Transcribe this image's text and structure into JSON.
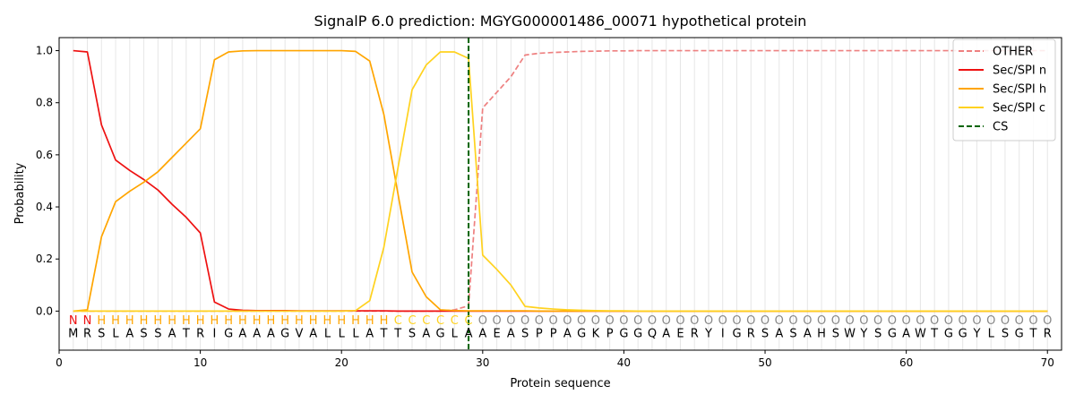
{
  "chart_data": {
    "type": "line",
    "title": "SignalP 6.0 prediction: MGYG000001486_00071 hypothetical protein",
    "xlabel": "Protein sequence",
    "ylabel": "Probability",
    "xlim": [
      0,
      71
    ],
    "ylim": [
      -0.15,
      1.05
    ],
    "x_ticks": [
      0,
      10,
      20,
      30,
      40,
      50,
      60,
      70
    ],
    "y_ticks": [
      0.0,
      0.2,
      0.4,
      0.6,
      0.8,
      1.0
    ],
    "x_tick_labels": [
      "0",
      "10",
      "20",
      "30",
      "40",
      "50",
      "60",
      "70"
    ],
    "y_tick_labels": [
      "0.0",
      "0.2",
      "0.4",
      "0.6",
      "0.8",
      "1.0"
    ],
    "grid": "vertical lines at each residue",
    "legend_position": "top-right",
    "sequence": [
      "M",
      "R",
      "S",
      "L",
      "A",
      "S",
      "S",
      "A",
      "T",
      "R",
      "I",
      "G",
      "A",
      "A",
      "A",
      "G",
      "V",
      "A",
      "L",
      "L",
      "L",
      "A",
      "T",
      "T",
      "S",
      "A",
      "G",
      "L",
      "A",
      "A",
      "E",
      "A",
      "S",
      "P",
      "P",
      "A",
      "G",
      "K",
      "P",
      "G",
      "G",
      "Q",
      "A",
      "E",
      "R",
      "Y",
      "I",
      "G",
      "R",
      "S",
      "A",
      "S",
      "A",
      "H",
      "S",
      "W",
      "Y",
      "S",
      "G",
      "A",
      "W",
      "T",
      "G",
      "G",
      "Y",
      "L",
      "S",
      "G",
      "T",
      "R"
    ],
    "region_labels": [
      "N",
      "N",
      "H",
      "H",
      "H",
      "H",
      "H",
      "H",
      "H",
      "H",
      "H",
      "H",
      "H",
      "H",
      "H",
      "H",
      "H",
      "H",
      "H",
      "H",
      "H",
      "H",
      "H",
      "C",
      "C",
      "C",
      "C",
      "C",
      "C",
      "O",
      "O",
      "O",
      "O",
      "O",
      "O",
      "O",
      "O",
      "O",
      "O",
      "O",
      "O",
      "O",
      "O",
      "O",
      "O",
      "O",
      "O",
      "O",
      "O",
      "O",
      "O",
      "O",
      "O",
      "O",
      "O",
      "O",
      "O",
      "O",
      "O",
      "O",
      "O",
      "O",
      "O",
      "O",
      "O",
      "O",
      "O",
      "O",
      "O",
      "O"
    ],
    "region_colors": {
      "N": "#ee1111",
      "H": "#ffa500",
      "C": "#ffd21f",
      "O": "#888888"
    },
    "series": [
      {
        "name": "OTHER",
        "color": "#ee8080",
        "style": "dashed",
        "values": [
          0,
          0,
          0,
          0,
          0,
          0,
          0,
          0,
          0,
          0,
          0,
          0,
          0,
          0,
          0,
          0,
          0,
          0,
          0,
          0,
          0,
          0,
          0,
          0,
          0,
          0,
          0,
          0.005,
          0.02,
          0.78,
          0.84,
          0.9,
          0.983,
          0.99,
          0.993,
          0.995,
          0.997,
          0.998,
          0.999,
          0.999,
          1,
          1,
          1,
          1,
          1,
          1,
          1,
          1,
          1,
          1,
          1,
          1,
          1,
          1,
          1,
          1,
          1,
          1,
          1,
          1,
          1,
          1,
          1,
          1,
          1,
          1,
          1,
          1,
          1,
          1
        ]
      },
      {
        "name": "Sec/SPI n",
        "color": "#ee1111",
        "style": "solid",
        "values": [
          1.0,
          0.995,
          0.715,
          0.58,
          0.54,
          0.505,
          0.465,
          0.41,
          0.36,
          0.3,
          0.035,
          0.008,
          0.003,
          0.002,
          0.002,
          0.002,
          0.001,
          0.001,
          0.001,
          0.001,
          0.001,
          0.001,
          0.001,
          0,
          0,
          0,
          0,
          0,
          0,
          0,
          0,
          0,
          0,
          0,
          0,
          0,
          0,
          0,
          0,
          0,
          0,
          0,
          0,
          0,
          0,
          0,
          0,
          0,
          0,
          0,
          0,
          0,
          0,
          0,
          0,
          0,
          0,
          0,
          0,
          0,
          0,
          0,
          0,
          0,
          0,
          0,
          0,
          0,
          0,
          0
        ]
      },
      {
        "name": "Sec/SPI h",
        "color": "#ffa500",
        "style": "solid",
        "values": [
          0,
          0.005,
          0.285,
          0.42,
          0.46,
          0.495,
          0.535,
          0.59,
          0.645,
          0.7,
          0.965,
          0.995,
          0.999,
          1.0,
          1.0,
          1.0,
          1.0,
          1.0,
          1.0,
          1.0,
          0.997,
          0.96,
          0.755,
          0.45,
          0.15,
          0.055,
          0.005,
          0.002,
          0.001,
          0.001,
          0.001,
          0.001,
          0.001,
          0,
          0,
          0,
          0,
          0,
          0,
          0,
          0,
          0,
          0,
          0,
          0,
          0,
          0,
          0,
          0,
          0,
          0,
          0,
          0,
          0,
          0,
          0,
          0,
          0,
          0,
          0,
          0,
          0,
          0,
          0,
          0,
          0,
          0,
          0,
          0,
          0
        ]
      },
      {
        "name": "Sec/SPI c",
        "color": "#ffd21f",
        "style": "solid",
        "values": [
          0,
          0,
          0,
          0,
          0,
          0,
          0,
          0,
          0,
          0,
          0,
          0,
          0,
          0,
          0,
          0,
          0,
          0,
          0,
          0,
          0.002,
          0.04,
          0.245,
          0.55,
          0.85,
          0.945,
          0.995,
          0.995,
          0.97,
          0.215,
          0.16,
          0.1,
          0.018,
          0.012,
          0.008,
          0.005,
          0.003,
          0.002,
          0.001,
          0.001,
          0,
          0,
          0,
          0,
          0,
          0,
          0,
          0,
          0,
          0,
          0,
          0,
          0,
          0,
          0,
          0,
          0,
          0,
          0,
          0,
          0,
          0,
          0,
          0,
          0,
          0,
          0,
          0,
          0,
          0
        ]
      },
      {
        "name": "CS",
        "color": "#006400",
        "style": "dashed",
        "x": 29
      }
    ]
  }
}
